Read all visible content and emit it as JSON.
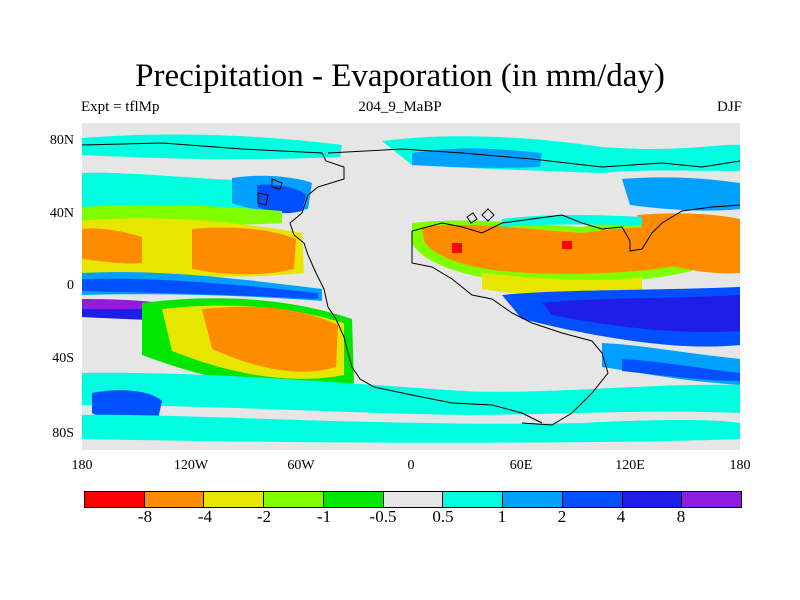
{
  "title": "Precipitation - Evaporation (in mm/day)",
  "subtitle_left": "Expt = tflMp",
  "subtitle_center": "204_9_MaBP",
  "subtitle_right": "DJF",
  "y_labels": [
    "80N",
    "40N",
    "0",
    "40S",
    "80S"
  ],
  "x_labels": [
    "180",
    "120W",
    "60W",
    "0",
    "60E",
    "120E",
    "180"
  ],
  "colorbar": {
    "colors": [
      "#ff0000",
      "#ff8c00",
      "#e6e600",
      "#7fff00",
      "#00e600",
      "#e6e6e6",
      "#00ffe0",
      "#00a0ff",
      "#0050ff",
      "#1e1ee6",
      "#8c1edc"
    ],
    "labels": [
      "-8",
      "-4",
      "-2",
      "-1",
      "-0.5",
      "0.5",
      "1",
      "2",
      "4",
      "8"
    ]
  }
}
